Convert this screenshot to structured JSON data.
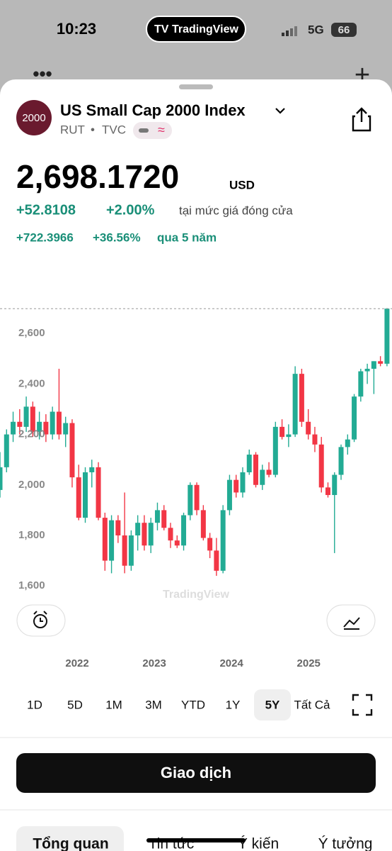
{
  "status_bar": {
    "time": "10:23",
    "app": "TradingView",
    "network": "5G",
    "battery": "66"
  },
  "header": {
    "logo": "2000",
    "title": "US Small Cap 2000 Index",
    "symbol": "RUT",
    "exchange": "TVC"
  },
  "quote": {
    "price": "2,698.1720",
    "currency": "USD",
    "change": "+52.8108",
    "change_percent": "+2.00%",
    "change_note": "tại mức giá đóng cửa",
    "period_change": "+722.3966",
    "period_change_percent": "+36.56%",
    "period_note": "qua 5 năm"
  },
  "chart_data": {
    "type": "candlestick",
    "watermark": "TradingView",
    "up_color": "#22ab94",
    "down_color": "#f23645",
    "x": [
      2021,
      2021.085,
      2021.17,
      2021.255,
      2021.34,
      2021.425,
      2021.51,
      2021.595,
      2021.68,
      2021.765,
      2021.85,
      2021.935,
      2022.02,
      2022.105,
      2022.19,
      2022.275,
      2022.36,
      2022.445,
      2022.53,
      2022.615,
      2022.7,
      2022.785,
      2022.87,
      2022.955,
      2023.04,
      2023.125,
      2023.21,
      2023.295,
      2023.38,
      2023.465,
      2023.55,
      2023.635,
      2023.72,
      2023.805,
      2023.89,
      2023.975,
      2024.06,
      2024.145,
      2024.23,
      2024.315,
      2024.4,
      2024.485,
      2024.57,
      2024.655,
      2024.74,
      2024.825,
      2024.91,
      2024.995,
      2025.08,
      2025.165,
      2025.25,
      2025.335,
      2025.42,
      2025.505,
      2025.59,
      2025.675,
      2025.76,
      2025.845,
      2025.93,
      2026.015
    ],
    "open": [
      1980,
      2070,
      2200,
      2250,
      2230,
      2310,
      2210,
      2250,
      2200,
      2290,
      2200,
      2245,
      2030,
      1870,
      2050,
      2070,
      1870,
      1700,
      1860,
      1800,
      1680,
      1800,
      1850,
      1760,
      1850,
      1900,
      1830,
      1780,
      1760,
      1880,
      2000,
      1900,
      1790,
      1740,
      1660,
      1900,
      2020,
      1970,
      2050,
      2120,
      2000,
      2060,
      2040,
      2230,
      2190,
      2200,
      2440,
      2250,
      2200,
      2160,
      1990,
      1960,
      2040,
      2150,
      2180,
      2350,
      2450,
      2460,
      2490,
      2480
    ],
    "high": [
      2130,
      2220,
      2290,
      2300,
      2350,
      2330,
      2290,
      2280,
      2310,
      2460,
      2270,
      2260,
      2080,
      2070,
      2100,
      2090,
      1890,
      1880,
      1880,
      1970,
      1820,
      1880,
      1880,
      1870,
      1930,
      1920,
      1850,
      1800,
      1890,
      2010,
      2010,
      1920,
      1810,
      1790,
      1920,
      2040,
      2040,
      2070,
      2140,
      2130,
      2080,
      2090,
      2250,
      2260,
      2240,
      2470,
      2460,
      2300,
      2230,
      2190,
      2010,
      2050,
      2160,
      2200,
      2360,
      2460,
      2480,
      2490,
      2510,
      2700
    ],
    "low": [
      1950,
      2050,
      2170,
      2200,
      2210,
      2190,
      2180,
      2170,
      2180,
      2180,
      2150,
      1990,
      1860,
      1850,
      1990,
      1860,
      1660,
      1650,
      1770,
      1650,
      1660,
      1740,
      1740,
      1730,
      1820,
      1820,
      1750,
      1750,
      1740,
      1860,
      1880,
      1780,
      1710,
      1640,
      1650,
      1880,
      1950,
      1950,
      2040,
      1990,
      1980,
      2030,
      2030,
      2180,
      2150,
      2190,
      2230,
      2180,
      2130,
      1970,
      1950,
      1730,
      2020,
      2120,
      2170,
      2330,
      2400,
      2360,
      2470,
      2470
    ],
    "close": [
      2070,
      2200,
      2250,
      2230,
      2310,
      2210,
      2250,
      2200,
      2290,
      2200,
      2245,
      2030,
      1870,
      2050,
      2070,
      1870,
      1700,
      1860,
      1800,
      1680,
      1800,
      1850,
      1760,
      1850,
      1900,
      1830,
      1780,
      1760,
      1880,
      2000,
      1900,
      1790,
      1740,
      1660,
      1900,
      2020,
      1970,
      2050,
      2120,
      2000,
      2060,
      2040,
      2230,
      2190,
      2200,
      2440,
      2250,
      2200,
      2160,
      1990,
      1960,
      2040,
      2150,
      2180,
      2350,
      2450,
      2460,
      2490,
      2480,
      2698.172
    ],
    "xlim": [
      2021,
      2026.08
    ],
    "xticks": [
      2022,
      2023,
      2024,
      2025
    ],
    "ylim": [
      1550,
      2710
    ],
    "yticks": [
      {
        "value": 1600,
        "label": "1,600"
      },
      {
        "value": 1800,
        "label": "1,800"
      },
      {
        "value": 2000,
        "label": "2,000"
      },
      {
        "value": 2200,
        "label": "2,200"
      },
      {
        "value": 2400,
        "label": "2,400"
      },
      {
        "value": 2600,
        "label": "2,600"
      }
    ]
  },
  "timeframes": [
    {
      "label": "1D"
    },
    {
      "label": "5D"
    },
    {
      "label": "1M"
    },
    {
      "label": "3M"
    },
    {
      "label": "YTD"
    },
    {
      "label": "1Y"
    },
    {
      "label": "5Y",
      "active": true
    },
    {
      "label": "Tất Cả"
    }
  ],
  "trade_button": "Giao dịch",
  "tabs": [
    {
      "label": "Tổng quan",
      "active": true
    },
    {
      "label": "Tin tức"
    },
    {
      "label": "Ý kiến"
    },
    {
      "label": "Ý tưởng"
    }
  ]
}
